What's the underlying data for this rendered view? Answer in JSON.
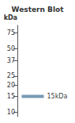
{
  "chart_data": {
    "type": "band",
    "title": "Western Blot",
    "ylabel": "kDa",
    "values": [
      15
    ],
    "color": "#5580a0",
    "annotation": "15kDa",
    "ylim": [
      9,
      90
    ],
    "yticks": [
      75,
      50,
      37,
      25,
      20,
      15,
      10
    ],
    "log": "y",
    "grid": false,
    "tick_labels": "y"
  }
}
